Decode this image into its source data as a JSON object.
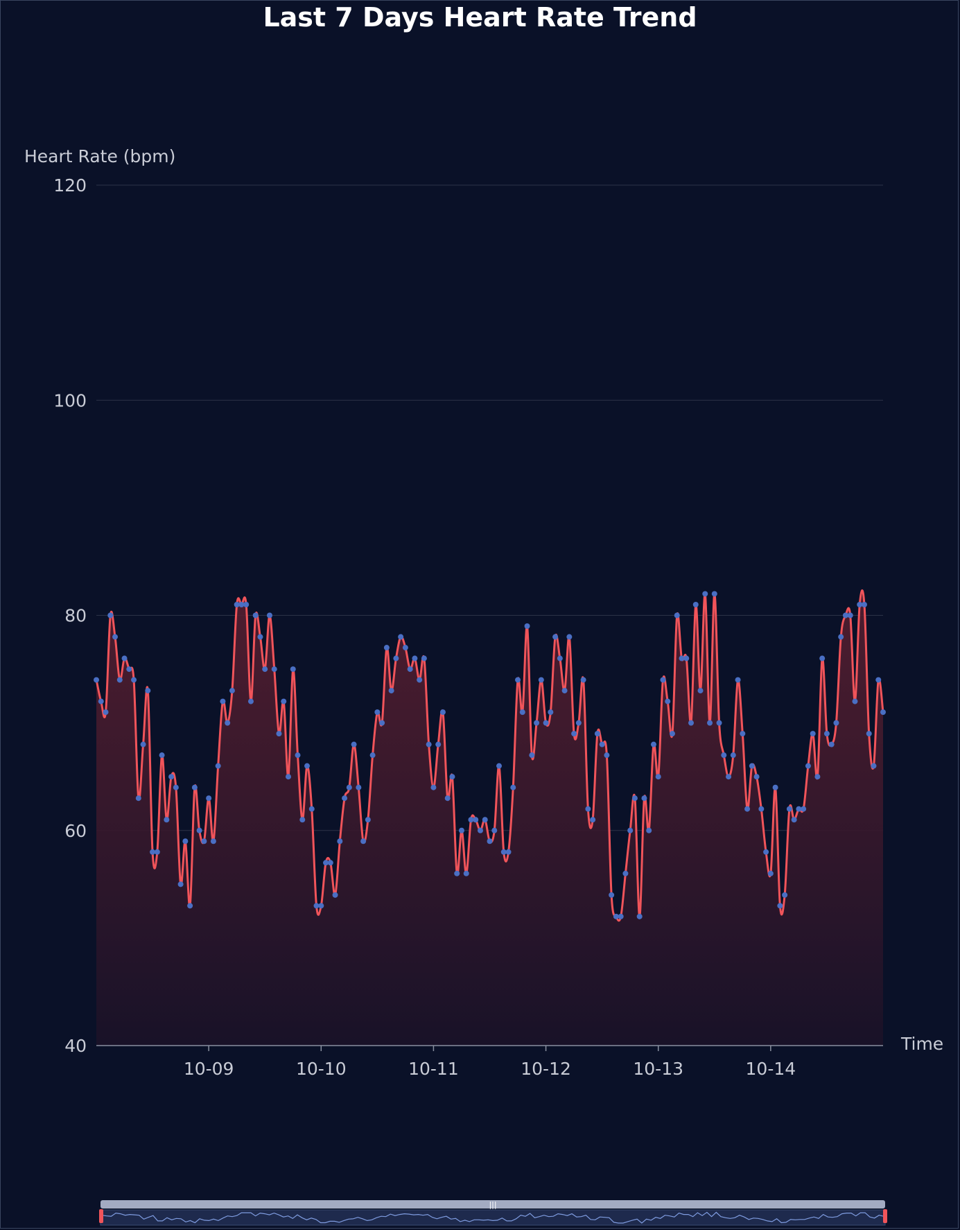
{
  "chart_data": {
    "type": "line",
    "title": "Last 7 Days Heart Rate Trend",
    "ylabel": "Heart Rate (bpm)",
    "xlabel": "Time",
    "ylim": [
      40,
      120
    ],
    "y_ticks": [
      40,
      60,
      80,
      100,
      120
    ],
    "x_ticks": [
      "10-09",
      "10-10",
      "10-11",
      "10-12",
      "10-13",
      "10-14"
    ],
    "smooth": true,
    "area_fill": true,
    "grid": true,
    "data_zoom": {
      "start": 0,
      "end": 100
    },
    "colors": {
      "background": "#0a1128",
      "line": "#f0545a",
      "points": "#4a6fc4",
      "area_top": "#5a1f30",
      "grid": "#2c3347",
      "zoom_band": "#a3abc2",
      "zoom_handle": "#f0545a"
    },
    "series": [
      {
        "values": [
          74,
          72,
          71,
          80,
          78,
          74,
          76,
          75,
          74,
          63,
          68,
          73,
          58,
          58,
          67,
          61,
          65,
          64,
          55,
          59,
          53,
          64,
          60,
          59,
          63,
          59,
          66,
          72,
          70,
          73,
          81,
          81,
          81,
          72,
          80,
          78,
          75,
          80,
          75,
          69,
          72,
          65,
          75,
          67,
          61,
          66,
          62,
          53,
          53,
          57,
          57,
          54,
          59,
          63,
          64,
          68,
          64,
          59,
          61,
          67,
          71,
          70,
          77,
          73,
          76,
          78,
          77,
          75,
          76,
          74,
          76,
          68,
          64,
          68,
          71,
          63,
          65,
          56,
          60,
          56,
          61,
          61,
          60,
          61,
          59,
          60,
          66,
          58,
          58,
          64,
          74,
          71,
          79,
          67,
          70,
          74,
          70,
          71,
          78,
          76,
          73,
          78,
          69,
          70,
          74,
          62,
          61,
          69,
          68,
          67,
          54,
          52,
          52,
          56,
          60,
          63,
          52,
          63,
          60,
          68,
          65,
          74,
          72,
          69,
          80,
          76,
          76,
          70,
          81,
          73,
          82,
          70,
          82,
          70,
          67,
          65,
          67,
          74,
          69,
          62,
          66,
          65,
          62,
          58,
          56,
          64,
          53,
          54,
          62,
          61,
          62,
          62,
          66,
          69,
          65,
          76,
          69,
          68,
          70,
          78,
          80,
          80,
          72,
          81,
          81,
          69,
          66,
          74,
          71
        ]
      }
    ]
  }
}
